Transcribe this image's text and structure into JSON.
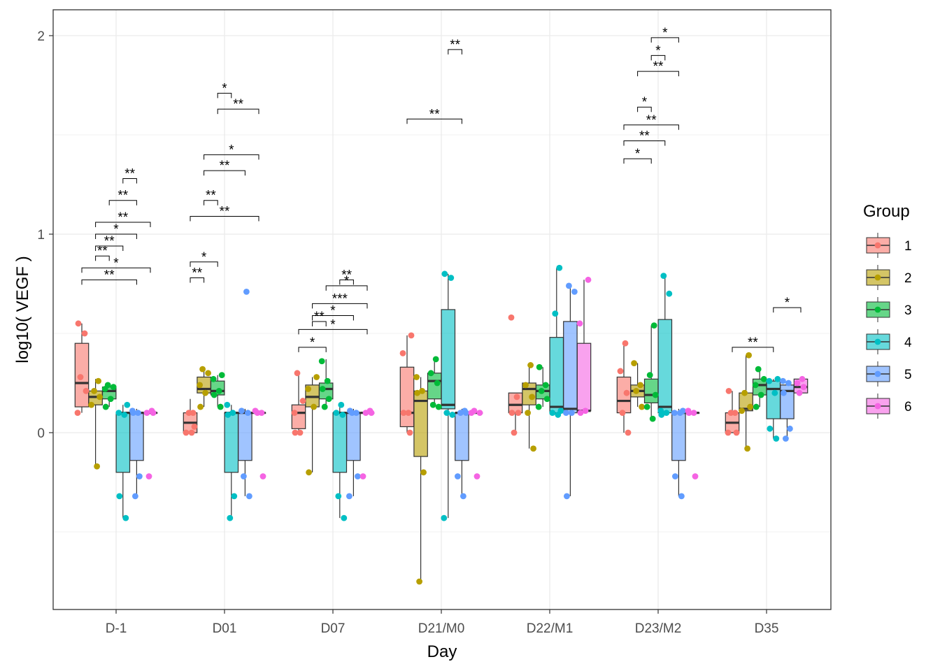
{
  "chart_data": {
    "type": "boxplot",
    "xlabel": "Day",
    "ylabel": "log10( VEGF )",
    "ylim": [
      -0.9,
      2.13
    ],
    "yticks": [
      0,
      1,
      2
    ],
    "yticklabels": [
      "0",
      "1",
      "2"
    ],
    "grid": true,
    "legend": {
      "title": "Group",
      "position": "right"
    },
    "categories": [
      "D-1",
      "D01",
      "D07",
      "D21/M0",
      "D22/M1",
      "D23/M2",
      "D35"
    ],
    "series": [
      {
        "name": "1",
        "color": "#F8766D",
        "boxes": [
          {
            "min": 0.1,
            "q1": 0.13,
            "median": 0.25,
            "q3": 0.45,
            "max": 0.55
          },
          {
            "min": 0.0,
            "q1": 0.0,
            "median": 0.05,
            "q3": 0.1,
            "max": 0.17
          },
          {
            "min": 0.0,
            "q1": 0.02,
            "median": 0.1,
            "q3": 0.14,
            "max": 0.31
          },
          {
            "min": 0.0,
            "q1": 0.03,
            "median": 0.1,
            "q3": 0.33,
            "max": 0.49
          },
          {
            "min": 0.0,
            "q1": 0.1,
            "median": 0.14,
            "q3": 0.2,
            "max": 0.2
          },
          {
            "min": 0.0,
            "q1": 0.1,
            "median": 0.16,
            "q3": 0.28,
            "max": 0.46
          },
          {
            "min": 0.0,
            "q1": 0.0,
            "median": 0.05,
            "q3": 0.1,
            "max": 0.21
          }
        ],
        "points": [
          [
            0.55,
            0.5,
            0.28,
            0.21,
            0.1
          ],
          [
            0.1,
            0.1,
            0.03,
            0.0,
            0.0
          ],
          [
            0.3,
            0.16,
            0.1,
            0.0,
            0.0
          ],
          [
            0.49,
            0.4,
            0.1,
            0.1,
            0.0
          ],
          [
            0.58,
            0.18,
            0.1,
            0.1,
            0.0
          ],
          [
            0.45,
            0.31,
            0.2,
            0.1,
            0.0
          ],
          [
            0.21,
            0.1,
            0.1,
            0.0,
            0.0
          ]
        ]
      },
      {
        "name": "2",
        "color": "#B79F00",
        "boxes": [
          {
            "min": -0.17,
            "q1": 0.14,
            "median": 0.18,
            "q3": 0.21,
            "max": 0.27
          },
          {
            "min": 0.13,
            "q1": 0.2,
            "median": 0.22,
            "q3": 0.28,
            "max": 0.32
          },
          {
            "min": -0.2,
            "q1": 0.13,
            "median": 0.18,
            "q3": 0.24,
            "max": 0.28
          },
          {
            "min": -0.75,
            "q1": -0.12,
            "median": 0.16,
            "q3": 0.21,
            "max": 0.28
          },
          {
            "min": -0.08,
            "q1": 0.14,
            "median": 0.22,
            "q3": 0.25,
            "max": 0.34
          },
          {
            "min": 0.13,
            "q1": 0.18,
            "median": 0.21,
            "q3": 0.24,
            "max": 0.35
          },
          {
            "min": -0.08,
            "q1": 0.11,
            "median": 0.12,
            "q3": 0.2,
            "max": 0.39
          }
        ],
        "points": [
          [
            0.26,
            0.21,
            0.18,
            0.14,
            -0.17
          ],
          [
            0.32,
            0.3,
            0.24,
            0.2,
            0.13
          ],
          [
            0.28,
            0.22,
            0.13,
            -0.2
          ],
          [
            0.28,
            0.21,
            0.2,
            -0.2,
            -0.75
          ],
          [
            0.34,
            0.24,
            0.18,
            0.1,
            -0.08
          ],
          [
            0.35,
            0.24,
            0.21,
            0.13
          ],
          [
            0.39,
            0.2,
            0.13,
            0.11,
            -0.08
          ]
        ]
      },
      {
        "name": "3",
        "color": "#00BA38",
        "boxes": [
          {
            "min": 0.13,
            "q1": 0.17,
            "median": 0.21,
            "q3": 0.23,
            "max": 0.24
          },
          {
            "min": 0.13,
            "q1": 0.19,
            "median": 0.21,
            "q3": 0.26,
            "max": 0.29
          },
          {
            "min": 0.13,
            "q1": 0.17,
            "median": 0.22,
            "q3": 0.25,
            "max": 0.37
          },
          {
            "min": 0.13,
            "q1": 0.17,
            "median": 0.26,
            "q3": 0.3,
            "max": 0.38
          },
          {
            "min": 0.13,
            "q1": 0.17,
            "median": 0.21,
            "q3": 0.24,
            "max": 0.33
          },
          {
            "min": 0.07,
            "q1": 0.15,
            "median": 0.19,
            "q3": 0.27,
            "max": 0.54
          },
          {
            "min": 0.13,
            "q1": 0.19,
            "median": 0.24,
            "q3": 0.27,
            "max": 0.32
          }
        ],
        "points": [
          [
            0.24,
            0.23,
            0.22,
            0.17,
            0.13
          ],
          [
            0.29,
            0.27,
            0.21,
            0.19,
            0.13
          ],
          [
            0.36,
            0.26,
            0.22,
            0.17,
            0.13
          ],
          [
            0.37,
            0.3,
            0.25,
            0.14,
            0.13
          ],
          [
            0.33,
            0.24,
            0.21,
            0.17,
            0.13
          ],
          [
            0.54,
            0.29,
            0.19,
            0.13,
            0.07
          ],
          [
            0.32,
            0.27,
            0.24,
            0.19,
            0.13
          ]
        ]
      },
      {
        "name": "4",
        "color": "#00BFC4",
        "boxes": [
          {
            "min": -0.43,
            "q1": -0.2,
            "median": 0.1,
            "q3": 0.1,
            "max": 0.14
          },
          {
            "min": -0.43,
            "q1": -0.2,
            "median": 0.1,
            "q3": 0.1,
            "max": 0.14
          },
          {
            "min": -0.43,
            "q1": -0.2,
            "median": 0.1,
            "q3": 0.1,
            "max": 0.14
          },
          {
            "min": -0.43,
            "q1": 0.12,
            "median": 0.14,
            "q3": 0.62,
            "max": 0.8
          },
          {
            "min": 0.09,
            "q1": 0.1,
            "median": 0.13,
            "q3": 0.48,
            "max": 0.83
          },
          {
            "min": 0.09,
            "q1": 0.1,
            "median": 0.13,
            "q3": 0.57,
            "max": 0.79
          },
          {
            "min": -0.03,
            "q1": 0.07,
            "median": 0.22,
            "q3": 0.26,
            "max": 0.27
          }
        ],
        "points": [
          [
            0.14,
            0.1,
            0.09,
            -0.32,
            -0.43
          ],
          [
            0.14,
            0.1,
            0.09,
            -0.32,
            -0.43
          ],
          [
            0.14,
            0.1,
            0.09,
            -0.32,
            -0.43
          ],
          [
            0.8,
            0.78,
            0.1,
            0.09,
            -0.43
          ],
          [
            0.83,
            0.6,
            0.11,
            0.1,
            0.09
          ],
          [
            0.79,
            0.7,
            0.11,
            0.1,
            0.09
          ],
          [
            0.27,
            0.26,
            0.2,
            0.02,
            -0.03
          ]
        ]
      },
      {
        "name": "5",
        "color": "#619CFF",
        "boxes": [
          {
            "min": -0.32,
            "q1": -0.14,
            "median": 0.1,
            "q3": 0.1,
            "max": 0.12
          },
          {
            "min": -0.32,
            "q1": -0.14,
            "median": 0.1,
            "q3": 0.1,
            "max": 0.12
          },
          {
            "min": -0.32,
            "q1": -0.14,
            "median": 0.1,
            "q3": 0.1,
            "max": 0.12
          },
          {
            "min": -0.32,
            "q1": -0.14,
            "median": 0.1,
            "q3": 0.1,
            "max": 0.12
          },
          {
            "min": -0.32,
            "q1": 0.1,
            "median": 0.12,
            "q3": 0.56,
            "max": 0.74
          },
          {
            "min": -0.32,
            "q1": -0.14,
            "median": 0.1,
            "q3": 0.1,
            "max": 0.12
          },
          {
            "min": -0.03,
            "q1": 0.07,
            "median": 0.21,
            "q3": 0.24,
            "max": 0.26
          }
        ],
        "points": [
          [
            0.11,
            0.1,
            0.1,
            -0.22,
            -0.32
          ],
          [
            0.71,
            0.11,
            0.1,
            -0.22,
            -0.32
          ],
          [
            0.11,
            0.1,
            0.1,
            -0.22,
            -0.32
          ],
          [
            0.11,
            0.1,
            0.1,
            -0.22,
            -0.32
          ],
          [
            0.74,
            0.71,
            0.1,
            0.1,
            -0.32
          ],
          [
            0.11,
            0.1,
            0.1,
            -0.22,
            -0.32
          ],
          [
            0.26,
            0.25,
            0.2,
            0.02,
            -0.03
          ]
        ]
      },
      {
        "name": "6",
        "color": "#F564E3",
        "boxes": [
          {
            "min": 0.1,
            "q1": 0.1,
            "median": 0.1,
            "q3": 0.1,
            "max": 0.11
          },
          {
            "min": 0.1,
            "q1": 0.1,
            "median": 0.1,
            "q3": 0.1,
            "max": 0.11
          },
          {
            "min": 0.1,
            "q1": 0.1,
            "median": 0.1,
            "q3": 0.1,
            "max": 0.11
          },
          {
            "min": 0.1,
            "q1": 0.1,
            "median": 0.1,
            "q3": 0.1,
            "max": 0.11
          },
          {
            "min": 0.1,
            "q1": 0.11,
            "median": 0.11,
            "q3": 0.45,
            "max": 0.77
          },
          {
            "min": 0.1,
            "q1": 0.1,
            "median": 0.1,
            "q3": 0.1,
            "max": 0.11
          },
          {
            "min": 0.2,
            "q1": 0.2,
            "median": 0.23,
            "q3": 0.27,
            "max": 0.27
          }
        ],
        "points": [
          [
            0.11,
            0.1,
            0.1,
            -0.22
          ],
          [
            0.11,
            0.1,
            0.1,
            -0.22
          ],
          [
            0.11,
            0.1,
            0.1,
            -0.22
          ],
          [
            0.11,
            0.1,
            0.1,
            -0.22
          ],
          [
            0.77,
            0.55,
            0.11,
            0.1
          ],
          [
            0.11,
            0.1,
            0.1,
            -0.22
          ],
          [
            0.27,
            0.25,
            0.23,
            0.2
          ]
        ]
      }
    ],
    "annotations": [
      {
        "day": "D-1",
        "g1": 1,
        "g2": 5,
        "y": 0.77,
        "label": "**"
      },
      {
        "day": "D-1",
        "g1": 1,
        "g2": 6,
        "y": 0.83,
        "label": "*"
      },
      {
        "day": "D-1",
        "g1": 2,
        "g2": 3,
        "y": 0.89,
        "label": "**"
      },
      {
        "day": "D-1",
        "g1": 2,
        "g2": 4,
        "y": 0.94,
        "label": "**"
      },
      {
        "day": "D-1",
        "g1": 2,
        "g2": 5,
        "y": 1.0,
        "label": "*"
      },
      {
        "day": "D-1",
        "g1": 2,
        "g2": 6,
        "y": 1.06,
        "label": "**"
      },
      {
        "day": "D-1",
        "g1": 3,
        "g2": 5,
        "y": 1.17,
        "label": "**"
      },
      {
        "day": "D-1",
        "g1": 4,
        "g2": 5,
        "y": 1.28,
        "label": "**"
      },
      {
        "day": "D01",
        "g1": 1,
        "g2": 2,
        "y": 0.78,
        "label": "**"
      },
      {
        "day": "D01",
        "g1": 1,
        "g2": 3,
        "y": 0.86,
        "label": "*"
      },
      {
        "day": "D01",
        "g1": 1,
        "g2": 6,
        "y": 1.09,
        "label": "**"
      },
      {
        "day": "D01",
        "g1": 2,
        "g2": 3,
        "y": 1.17,
        "label": "**"
      },
      {
        "day": "D01",
        "g1": 2,
        "g2": 5,
        "y": 1.32,
        "label": "**"
      },
      {
        "day": "D01",
        "g1": 2,
        "g2": 6,
        "y": 1.4,
        "label": "*"
      },
      {
        "day": "D01",
        "g1": 3,
        "g2": 6,
        "y": 1.63,
        "label": "**"
      },
      {
        "day": "D01",
        "g1": 3,
        "g2": 4,
        "y": 1.71,
        "label": "*"
      },
      {
        "day": "D07",
        "g1": 1,
        "g2": 3,
        "y": 0.43,
        "label": "*"
      },
      {
        "day": "D07",
        "g1": 1,
        "g2": 6,
        "y": 0.52,
        "label": "*"
      },
      {
        "day": "D07",
        "g1": 2,
        "g2": 3,
        "y": 0.56,
        "label": "**"
      },
      {
        "day": "D07",
        "g1": 2,
        "g2": 5,
        "y": 0.59,
        "label": "*"
      },
      {
        "day": "D07",
        "g1": 2,
        "g2": 6,
        "y": 0.65,
        "label": "***"
      },
      {
        "day": "D07",
        "g1": 3,
        "g2": 6,
        "y": 0.74,
        "label": "*"
      },
      {
        "day": "D07",
        "g1": 4,
        "g2": 5,
        "y": 0.77,
        "label": "**"
      },
      {
        "day": "D21/M0",
        "g1": 1,
        "g2": 5,
        "y": 1.58,
        "label": "**"
      },
      {
        "day": "D21/M0",
        "g1": 4,
        "g2": 5,
        "y": 1.93,
        "label": "**"
      },
      {
        "day": "D23/M2",
        "g1": 1,
        "g2": 3,
        "y": 1.38,
        "label": "*"
      },
      {
        "day": "D23/M2",
        "g1": 1,
        "g2": 4,
        "y": 1.47,
        "label": "**"
      },
      {
        "day": "D23/M2",
        "g1": 1,
        "g2": 5,
        "y": 1.55,
        "label": "**"
      },
      {
        "day": "D23/M2",
        "g1": 2,
        "g2": 3,
        "y": 1.64,
        "label": "*"
      },
      {
        "day": "D23/M2",
        "g1": 2,
        "g2": 5,
        "y": 1.82,
        "label": "**"
      },
      {
        "day": "D23/M2",
        "g1": 3,
        "g2": 4,
        "y": 1.9,
        "label": "*"
      },
      {
        "day": "D23/M2",
        "g1": 3,
        "g2": 5,
        "y": 1.99,
        "label": "*"
      },
      {
        "day": "D35",
        "g1": 1,
        "g2": 4,
        "y": 0.43,
        "label": "**"
      },
      {
        "day": "D35",
        "g1": 4,
        "g2": 6,
        "y": 0.63,
        "label": "*"
      }
    ]
  }
}
